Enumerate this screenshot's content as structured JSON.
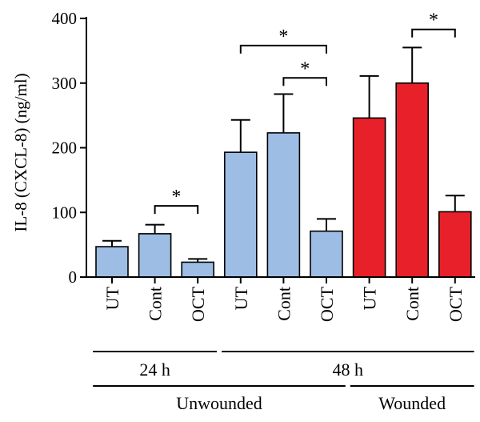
{
  "chart_data": {
    "type": "bar",
    "ylabel": "IL-8 (CXCL-8) (ng/ml)",
    "ylim": [
      0,
      400
    ],
    "yticks": [
      0,
      100,
      200,
      300,
      400
    ],
    "grid": false,
    "categories": [
      "UT",
      "Cont",
      "OCT",
      "UT",
      "Cont",
      "OCT",
      "UT",
      "Cont",
      "OCT"
    ],
    "values": [
      47,
      67,
      23,
      193,
      223,
      71,
      246,
      300,
      101
    ],
    "errors": [
      9,
      14,
      5,
      50,
      60,
      19,
      65,
      55,
      25
    ],
    "colors": [
      "#9dbde4",
      "#9dbde4",
      "#9dbde4",
      "#9dbde4",
      "#9dbde4",
      "#9dbde4",
      "#e8202a",
      "#e8202a",
      "#e8202a"
    ],
    "groups_level1": [
      {
        "label": "24 h",
        "from": 0,
        "to": 2
      },
      {
        "label": "48 h",
        "from": 3,
        "to": 8
      }
    ],
    "groups_level2": [
      {
        "label": "Unwounded",
        "from": 0,
        "to": 5
      },
      {
        "label": "Wounded",
        "from": 6,
        "to": 8
      }
    ],
    "significance": [
      {
        "from": 1,
        "to": 2,
        "y": 110,
        "label": "*"
      },
      {
        "from": 3,
        "to": 5,
        "y": 358,
        "label": "*"
      },
      {
        "from": 4,
        "to": 5,
        "y": 308,
        "label": "*"
      },
      {
        "from": 7,
        "to": 8,
        "y": 383,
        "label": "*"
      }
    ]
  }
}
